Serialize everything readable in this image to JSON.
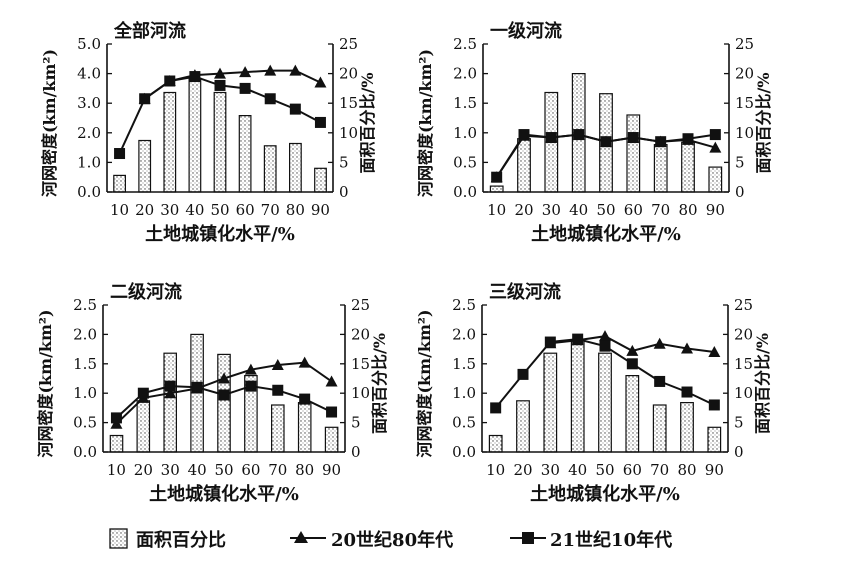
{
  "chart_data": [
    {
      "type": "bar+line",
      "title": "全部河流",
      "categories": [
        "10",
        "20",
        "30",
        "40",
        "50",
        "60",
        "70",
        "80",
        "90"
      ],
      "bar_series": {
        "name": "面积百分比",
        "axis": "right",
        "values": [
          2.8,
          8.7,
          16.8,
          19.2,
          16.8,
          12.9,
          7.8,
          8.2,
          4.0
        ]
      },
      "series": [
        {
          "name": "20世纪80年代",
          "axis": "left",
          "marker": "triangle",
          "values": [
            null,
            3.15,
            3.75,
            3.95,
            4.0,
            4.05,
            4.1,
            4.1,
            3.7
          ]
        },
        {
          "name": "21世纪10年代",
          "axis": "left",
          "marker": "square",
          "values": [
            1.3,
            3.15,
            3.75,
            3.9,
            3.6,
            3.5,
            3.15,
            2.8,
            2.35
          ]
        }
      ],
      "xlabel": "土地城镇化水平/%",
      "ylabel": "河网密度(km/km²)",
      "y2label": "面积百分比/%",
      "ylim": [
        0,
        5.0
      ],
      "y2lim": [
        0,
        25
      ],
      "yticks": [
        "0.0",
        "1.0",
        "2.0",
        "3.0",
        "4.0",
        "5.0"
      ],
      "y2ticks": [
        "0",
        "5",
        "10",
        "15",
        "20",
        "25"
      ]
    },
    {
      "type": "bar+line",
      "title": "一级河流",
      "categories": [
        "10",
        "20",
        "30",
        "40",
        "50",
        "60",
        "70",
        "80",
        "90"
      ],
      "bar_series": {
        "name": "面积百分比",
        "axis": "right",
        "values": [
          1.0,
          9.0,
          16.8,
          20.0,
          16.6,
          13.0,
          8.0,
          8.4,
          4.2
        ]
      },
      "series": [
        {
          "name": "20世纪80年代",
          "axis": "left",
          "marker": "triangle",
          "values": [
            0.25,
            0.95,
            0.92,
            0.97,
            0.85,
            0.92,
            0.85,
            0.88,
            0.75
          ]
        },
        {
          "name": "21世纪10年代",
          "axis": "left",
          "marker": "square",
          "values": [
            0.25,
            0.97,
            0.92,
            0.97,
            0.85,
            0.92,
            0.85,
            0.9,
            0.97
          ]
        }
      ],
      "xlabel": "土地城镇化水平/%",
      "ylabel": "河网密度(km/km²)",
      "y2label": "面积百分比/%",
      "ylim": [
        0,
        2.5
      ],
      "y2lim": [
        0,
        25
      ],
      "yticks": [
        "0.0",
        "0.5",
        "1.0",
        "1.5",
        "2.0",
        "2.5"
      ],
      "y2ticks": [
        "0",
        "5",
        "10",
        "15",
        "20",
        "25"
      ]
    },
    {
      "type": "bar+line",
      "title": "二级河流",
      "categories": [
        "10",
        "20",
        "30",
        "40",
        "50",
        "60",
        "70",
        "80",
        "90"
      ],
      "bar_series": {
        "name": "面积百分比",
        "axis": "right",
        "values": [
          2.8,
          8.7,
          16.8,
          20.0,
          16.6,
          13.0,
          8.0,
          8.4,
          4.2
        ]
      },
      "series": [
        {
          "name": "20世纪80年代",
          "axis": "left",
          "marker": "triangle",
          "values": [
            0.48,
            0.92,
            1.0,
            1.08,
            1.25,
            1.4,
            1.48,
            1.52,
            1.2
          ]
        },
        {
          "name": "21世纪10年代",
          "axis": "left",
          "marker": "square",
          "values": [
            0.58,
            1.0,
            1.12,
            1.1,
            0.97,
            1.12,
            1.05,
            0.9,
            0.68
          ]
        }
      ],
      "xlabel": "土地城镇化水平/%",
      "ylabel": "河网密度(km/km²)",
      "y2label": "面积百分比/%",
      "ylim": [
        0,
        2.5
      ],
      "y2lim": [
        0,
        25
      ],
      "yticks": [
        "0.0",
        "0.5",
        "1.0",
        "1.5",
        "2.0",
        "2.5"
      ],
      "y2ticks": [
        "0",
        "5",
        "10",
        "15",
        "20",
        "25"
      ]
    },
    {
      "type": "bar+line",
      "title": "三级河流",
      "categories": [
        "10",
        "20",
        "30",
        "40",
        "50",
        "60",
        "70",
        "80",
        "90"
      ],
      "bar_series": {
        "name": "面积百分比",
        "axis": "right",
        "values": [
          2.8,
          8.7,
          16.8,
          19.0,
          16.8,
          13.0,
          8.0,
          8.4,
          4.2
        ]
      },
      "series": [
        {
          "name": "20世纪80年代",
          "axis": "left",
          "marker": "triangle",
          "values": [
            null,
            null,
            1.85,
            1.9,
            1.97,
            1.72,
            1.84,
            1.76,
            1.7
          ]
        },
        {
          "name": "21世纪10年代",
          "axis": "left",
          "marker": "square",
          "values": [
            0.75,
            1.32,
            1.87,
            1.92,
            1.8,
            1.5,
            1.2,
            1.02,
            0.8
          ]
        }
      ],
      "xlabel": "土地城镇化水平/%",
      "ylabel": "河网密度(km/km²)",
      "y2label": "面积百分比/%",
      "ylim": [
        0,
        2.5
      ],
      "y2lim": [
        0,
        25
      ],
      "yticks": [
        "0.0",
        "0.5",
        "1.0",
        "1.5",
        "2.0",
        "2.5"
      ],
      "y2ticks": [
        "0",
        "5",
        "10",
        "15",
        "20",
        "25"
      ]
    }
  ],
  "legend": {
    "area_label": "面积百分比",
    "series_80s": "20世纪80年代",
    "series_10s": "21世纪10年代"
  }
}
